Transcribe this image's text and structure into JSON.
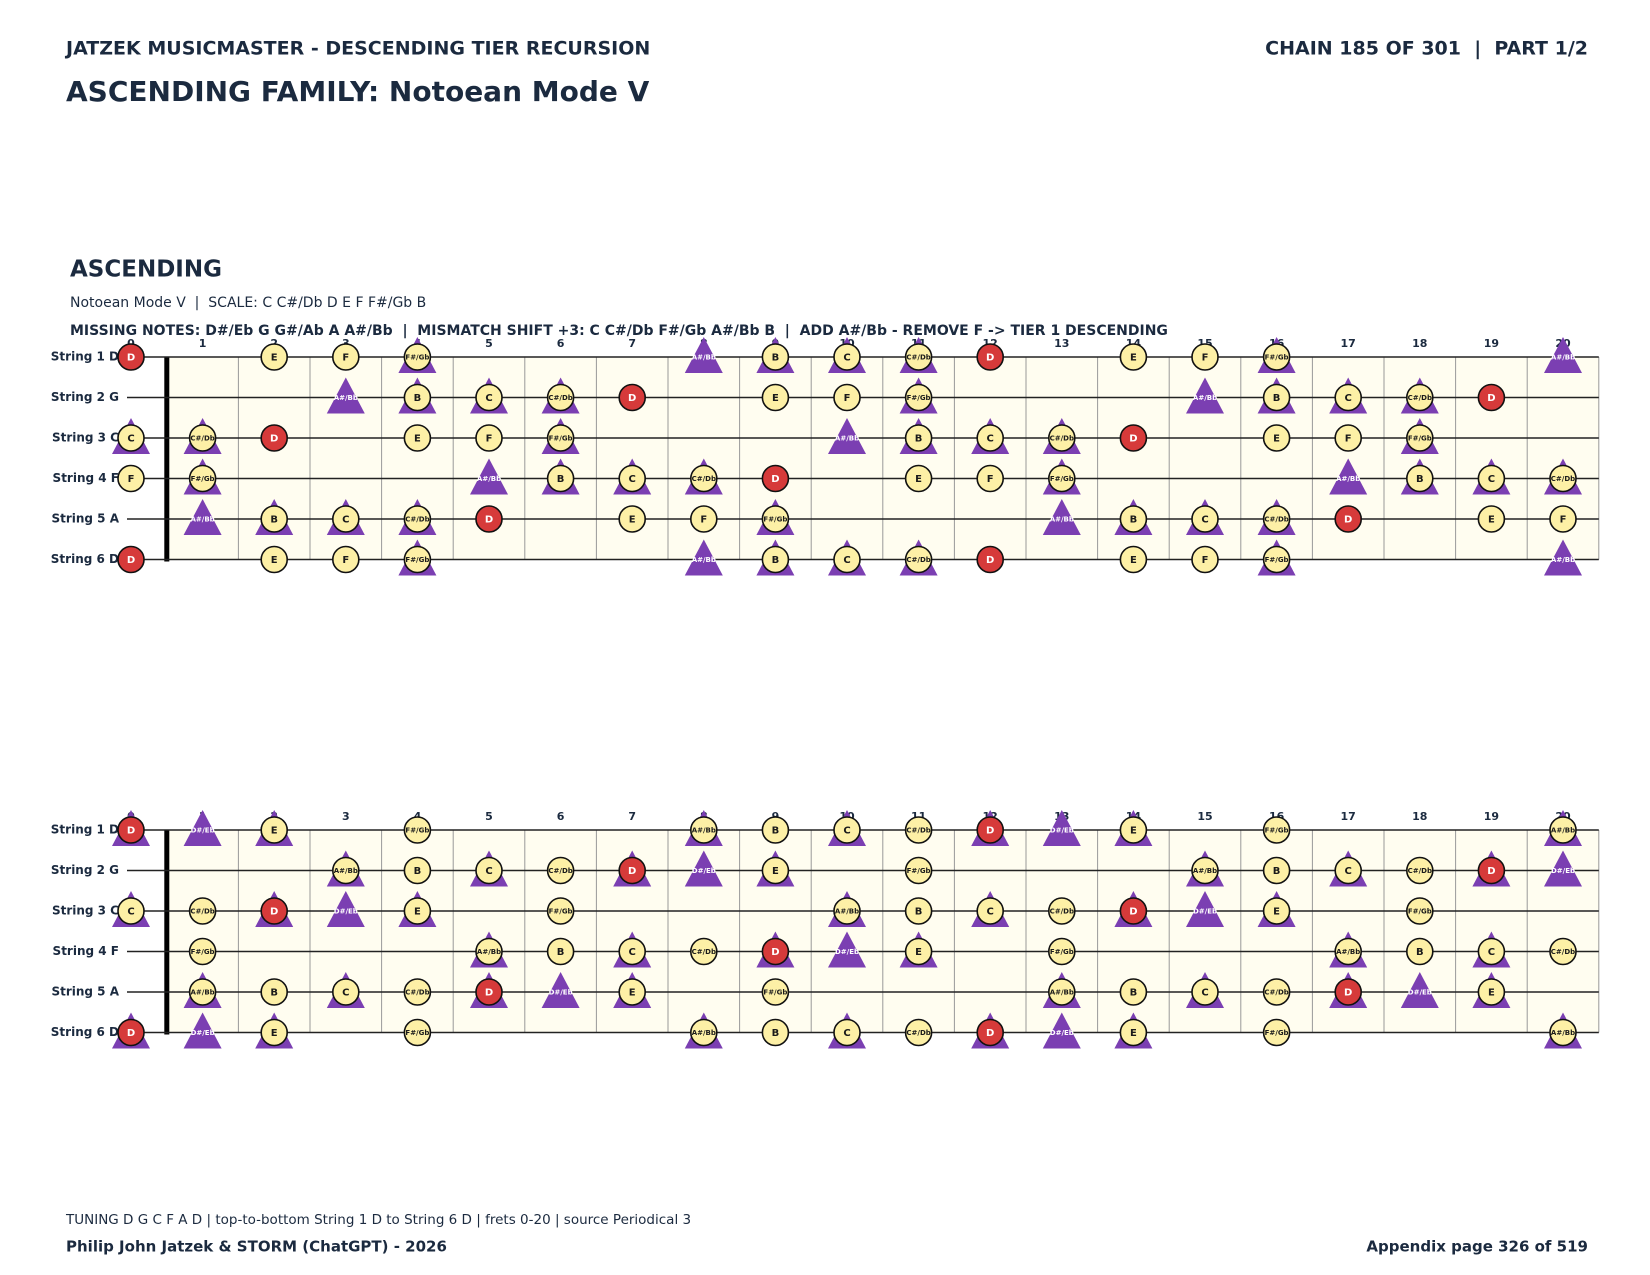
{
  "header": {
    "left": "JATZEK MUSICMASTER - DESCENDING TIER RECURSION",
    "right": "CHAIN 185 OF 301  |  PART 1/2"
  },
  "title": "ASCENDING FAMILY: Notoean Mode V",
  "section": {
    "heading": "ASCENDING",
    "scale_line": "Notoean Mode V  |  SCALE: C C#/Db D E F F#/Gb B",
    "notes_line": "MISSING NOTES: D#/Eb G G#/Ab A A#/Bb  |  MISMATCH SHIFT +3: C C#/Db F#/Gb A#/Bb B  |  ADD A#/Bb - REMOVE F -> TIER 1 DESCENDING"
  },
  "boards": [
    {
      "frets": [
        0,
        1,
        2,
        3,
        4,
        5,
        6,
        7,
        8,
        9,
        10,
        11,
        12,
        13,
        14,
        15,
        16,
        17,
        18,
        19,
        20
      ],
      "strings": [
        {
          "name": "String 1 D",
          "notes": [
            "D",
            null,
            "E",
            "F",
            "F#/Gb",
            null,
            null,
            null,
            "A#/Bb",
            "B",
            "C",
            "C#/Db",
            "D",
            null,
            "E",
            "F",
            "F#/Gb",
            null,
            null,
            null,
            "A#/Bb"
          ],
          "marks": [
            "r",
            null,
            "c",
            "c",
            "ct",
            null,
            null,
            null,
            "t",
            "ct",
            "ct",
            "ct",
            "r",
            null,
            "c",
            "c",
            "ct",
            null,
            null,
            null,
            "t"
          ]
        },
        {
          "name": "String 2 G",
          "notes": [
            null,
            null,
            null,
            "A#/Bb",
            "B",
            "C",
            "C#/Db",
            "D",
            null,
            "E",
            "F",
            "F#/Gb",
            null,
            null,
            null,
            "A#/Bb",
            "B",
            "C",
            "C#/Db",
            "D",
            null
          ],
          "marks": [
            null,
            null,
            null,
            "t",
            "ct",
            "ct",
            "ct",
            "r",
            null,
            "c",
            "c",
            "ct",
            null,
            null,
            null,
            "t",
            "ct",
            "ct",
            "ct",
            "r",
            null
          ]
        },
        {
          "name": "String 3 C",
          "notes": [
            "C",
            "C#/Db",
            "D",
            null,
            "E",
            "F",
            "F#/Gb",
            null,
            null,
            null,
            "A#/Bb",
            "B",
            "C",
            "C#/Db",
            "D",
            null,
            "E",
            "F",
            "F#/Gb",
            null,
            null
          ],
          "marks": [
            "ct",
            "ct",
            "r",
            null,
            "c",
            "c",
            "ct",
            null,
            null,
            null,
            "t",
            "ct",
            "ct",
            "ct",
            "r",
            null,
            "c",
            "c",
            "ct",
            null,
            null
          ]
        },
        {
          "name": "String 4 F",
          "notes": [
            "F",
            "F#/Gb",
            null,
            null,
            null,
            "A#/Bb",
            "B",
            "C",
            "C#/Db",
            "D",
            null,
            "E",
            "F",
            "F#/Gb",
            null,
            null,
            null,
            "A#/Bb",
            "B",
            "C",
            "C#/Db"
          ],
          "marks": [
            "c",
            "ct",
            null,
            null,
            null,
            "t",
            "ct",
            "ct",
            "ct",
            "r",
            null,
            "c",
            "c",
            "ct",
            null,
            null,
            null,
            "t",
            "ct",
            "ct",
            "ct"
          ]
        },
        {
          "name": "String 5 A",
          "notes": [
            null,
            "A#/Bb",
            "B",
            "C",
            "C#/Db",
            "D",
            null,
            "E",
            "F",
            "F#/Gb",
            null,
            null,
            null,
            "A#/Bb",
            "B",
            "C",
            "C#/Db",
            "D",
            null,
            "E",
            "F"
          ],
          "marks": [
            null,
            "t",
            "ct",
            "ct",
            "ct",
            "r",
            null,
            "c",
            "c",
            "ct",
            null,
            null,
            null,
            "t",
            "ct",
            "ct",
            "ct",
            "r",
            null,
            "c",
            "c"
          ]
        },
        {
          "name": "String 6 D",
          "notes": [
            "D",
            null,
            "E",
            "F",
            "F#/Gb",
            null,
            null,
            null,
            "A#/Bb",
            "B",
            "C",
            "C#/Db",
            "D",
            null,
            "E",
            "F",
            "F#/Gb",
            null,
            null,
            null,
            "A#/Bb"
          ],
          "marks": [
            "r",
            null,
            "c",
            "c",
            "ct",
            null,
            null,
            null,
            "t",
            "ct",
            "ct",
            "ct",
            "r",
            null,
            "c",
            "c",
            "ct",
            null,
            null,
            null,
            "t"
          ]
        }
      ]
    },
    {
      "frets": [
        0,
        1,
        2,
        3,
        4,
        5,
        6,
        7,
        8,
        9,
        10,
        11,
        12,
        13,
        14,
        15,
        16,
        17,
        18,
        19,
        20
      ],
      "strings": [
        {
          "name": "String 1 D",
          "notes": [
            "D",
            "D#/Eb",
            "E",
            null,
            "F#/Gb",
            null,
            null,
            null,
            "A#/Bb",
            "B",
            "C",
            "C#/Db",
            "D",
            "D#/Eb",
            "E",
            null,
            "F#/Gb",
            null,
            null,
            null,
            "A#/Bb"
          ],
          "marks": [
            "rt",
            "t",
            "ct",
            null,
            "c",
            null,
            null,
            null,
            "ct",
            "c",
            "ct",
            "c",
            "rt",
            "t",
            "ct",
            null,
            "c",
            null,
            null,
            null,
            "ct"
          ]
        },
        {
          "name": "String 2 G",
          "notes": [
            null,
            null,
            null,
            "A#/Bb",
            "B",
            "C",
            "C#/Db",
            "D",
            "D#/Eb",
            "E",
            null,
            "F#/Gb",
            null,
            null,
            null,
            "A#/Bb",
            "B",
            "C",
            "C#/Db",
            "D",
            "D#/Eb"
          ],
          "marks": [
            null,
            null,
            null,
            "ct",
            "c",
            "ct",
            "c",
            "rt",
            "t",
            "ct",
            null,
            "c",
            null,
            null,
            null,
            "ct",
            "c",
            "ct",
            "c",
            "rt",
            "t"
          ]
        },
        {
          "name": "String 3 C",
          "notes": [
            "C",
            "C#/Db",
            "D",
            "D#/Eb",
            "E",
            null,
            "F#/Gb",
            null,
            null,
            null,
            "A#/Bb",
            "B",
            "C",
            "C#/Db",
            "D",
            "D#/Eb",
            "E",
            null,
            "F#/Gb",
            null,
            null
          ],
          "marks": [
            "ct",
            "c",
            "rt",
            "t",
            "ct",
            null,
            "c",
            null,
            null,
            null,
            "ct",
            "c",
            "ct",
            "c",
            "rt",
            "t",
            "ct",
            null,
            "c",
            null,
            null
          ]
        },
        {
          "name": "String 4 F",
          "notes": [
            null,
            "F#/Gb",
            null,
            null,
            null,
            "A#/Bb",
            "B",
            "C",
            "C#/Db",
            "D",
            "D#/Eb",
            "E",
            null,
            "F#/Gb",
            null,
            null,
            null,
            "A#/Bb",
            "B",
            "C",
            "C#/Db"
          ],
          "marks": [
            null,
            "c",
            null,
            null,
            null,
            "ct",
            "c",
            "ct",
            "c",
            "rt",
            "t",
            "ct",
            null,
            "c",
            null,
            null,
            null,
            "ct",
            "c",
            "ct",
            "c"
          ]
        },
        {
          "name": "String 5 A",
          "notes": [
            null,
            "A#/Bb",
            "B",
            "C",
            "C#/Db",
            "D",
            "D#/Eb",
            "E",
            null,
            "F#/Gb",
            null,
            null,
            null,
            "A#/Bb",
            "B",
            "C",
            "C#/Db",
            "D",
            "D#/Eb",
            "E",
            null
          ],
          "marks": [
            null,
            "ct",
            "c",
            "ct",
            "c",
            "rt",
            "t",
            "ct",
            null,
            "c",
            null,
            null,
            null,
            "ct",
            "c",
            "ct",
            "c",
            "rt",
            "t",
            "ct",
            null
          ]
        },
        {
          "name": "String 6 D",
          "notes": [
            "D",
            "D#/Eb",
            "E",
            null,
            "F#/Gb",
            null,
            null,
            null,
            "A#/Bb",
            "B",
            "C",
            "C#/Db",
            "D",
            "D#/Eb",
            "E",
            null,
            "F#/Gb",
            null,
            null,
            null,
            "A#/Bb"
          ],
          "marks": [
            "rt",
            "t",
            "ct",
            null,
            "c",
            null,
            null,
            null,
            "ct",
            "c",
            "ct",
            "c",
            "rt",
            "t",
            "ct",
            null,
            "c",
            null,
            null,
            null,
            "ct"
          ]
        }
      ]
    }
  ],
  "footer": {
    "tuning": "TUNING D G C F A D | top-to-bottom String 1 D to String 6 D | frets 0-20 | source Periodical 3",
    "credit": "Philip John Jatzek & STORM (ChatGPT) - 2026",
    "page": "Appendix page 326 of 519"
  }
}
